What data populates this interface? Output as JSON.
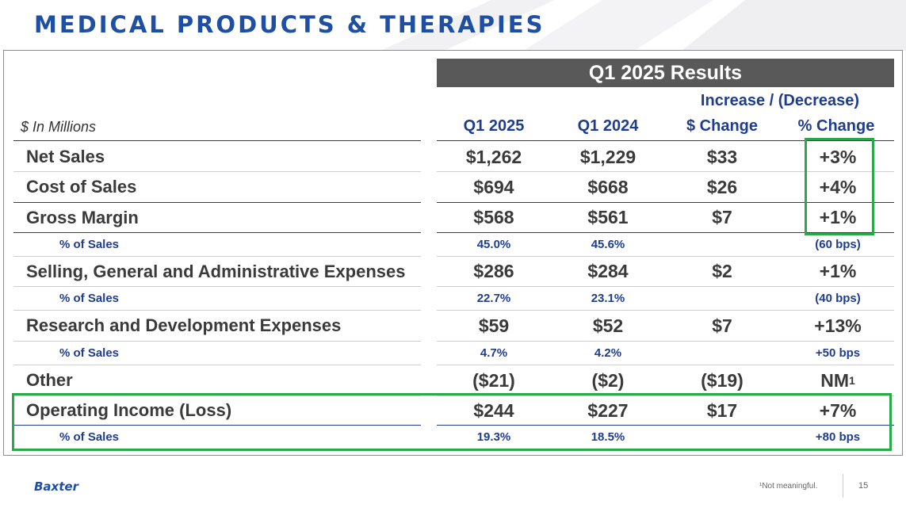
{
  "page": {
    "title": "MEDICAL PRODUCTS & THERAPIES",
    "colors": {
      "title_blue": "#1f4fa3",
      "navy": "#1f3d8f",
      "header_gray": "#595959",
      "highlight_green": "#2ba84a"
    }
  },
  "table": {
    "section_header": "Q1 2025 Results",
    "change_header": "Increase / (Decrease)",
    "units_label": "$ In Millions",
    "columns": [
      "Q1 2025",
      "Q1 2024",
      "$ Change",
      "% Change"
    ],
    "rows": [
      {
        "label": "Net Sales",
        "q1_2025": "$1,262",
        "q1_2024": "$1,229",
        "dollar_change": "$33",
        "pct_change": "+3%"
      },
      {
        "label": "Cost of Sales",
        "q1_2025": "$694",
        "q1_2024": "$668",
        "dollar_change": "$26",
        "pct_change": "+4%"
      },
      {
        "label": "Gross Margin",
        "q1_2025": "$568",
        "q1_2024": "$561",
        "dollar_change": "$7",
        "pct_change": "+1%"
      },
      {
        "label": "% of Sales",
        "q1_2025": "45.0%",
        "q1_2024": "45.6%",
        "dollar_change": "",
        "pct_change": "(60 bps)"
      },
      {
        "label": "Selling, General and Administrative Expenses",
        "q1_2025": "$286",
        "q1_2024": "$284",
        "dollar_change": "$2",
        "pct_change": "+1%"
      },
      {
        "label": "% of Sales",
        "q1_2025": "22.7%",
        "q1_2024": "23.1%",
        "dollar_change": "",
        "pct_change": "(40 bps)"
      },
      {
        "label": "Research and Development Expenses",
        "q1_2025": "$59",
        "q1_2024": "$52",
        "dollar_change": "$7",
        "pct_change": "+13%"
      },
      {
        "label": "% of Sales",
        "q1_2025": "4.7%",
        "q1_2024": "4.2%",
        "dollar_change": "",
        "pct_change": "+50 bps"
      },
      {
        "label": "Other",
        "q1_2025": "($21)",
        "q1_2024": "($2)",
        "dollar_change": "($19)",
        "pct_change": "NM",
        "pct_change_sup": "1"
      },
      {
        "label": "Operating Income (Loss)",
        "q1_2025": "$244",
        "q1_2024": "$227",
        "dollar_change": "$17",
        "pct_change": "+7%"
      },
      {
        "label": "% of Sales",
        "q1_2025": "19.3%",
        "q1_2024": "18.5%",
        "dollar_change": "",
        "pct_change": "+80 bps"
      }
    ]
  },
  "footer": {
    "logo_text": "Baxter",
    "footnote": "¹Not meaningful.",
    "page_number": "15"
  }
}
